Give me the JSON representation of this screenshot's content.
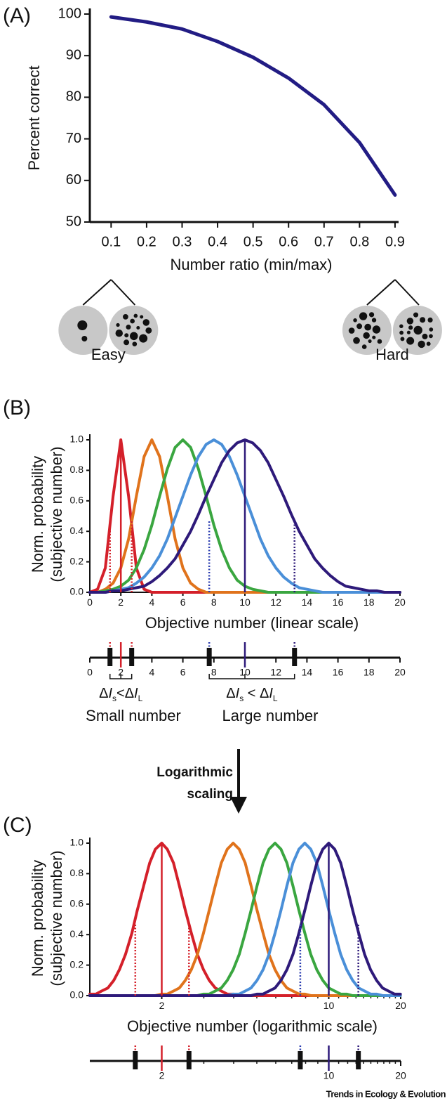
{
  "chart_data": [
    {
      "type": "line",
      "panel": "(A)",
      "ylabel": "Percent correct",
      "xlabel": "Number ratio (min/max)",
      "x": [
        0.1,
        0.2,
        0.3,
        0.4,
        0.5,
        0.6,
        0.7,
        0.8,
        0.9
      ],
      "values": [
        99.3,
        98.1,
        96.4,
        93.4,
        89.6,
        84.6,
        78.2,
        69.1,
        56.5
      ],
      "color": "#221c84",
      "xlim": [
        0.04,
        0.91
      ],
      "ylim": [
        50,
        100
      ],
      "xticks": [
        0.1,
        0.2,
        0.3,
        0.4,
        0.5,
        0.6,
        0.7,
        0.8,
        0.9
      ],
      "yticks": [
        50,
        60,
        70,
        80,
        90,
        100
      ],
      "annotations": [
        {
          "text": "Easy",
          "x": 0.1
        },
        {
          "text": "Hard",
          "x": 0.9
        }
      ]
    },
    {
      "type": "line",
      "panel": "(B)",
      "ylabel": [
        "Norm. probability",
        "(subjective number)"
      ],
      "xlabel": "Objective number (linear scale)",
      "x": [
        0,
        0.5,
        1,
        1.5,
        2,
        2.5,
        3,
        3.5,
        4,
        4.5,
        5,
        5.5,
        6,
        6.5,
        7,
        7.5,
        8,
        8.5,
        9,
        9.5,
        10,
        10.5,
        11,
        11.5,
        12,
        12.5,
        13,
        13.5,
        14,
        14.5,
        15,
        15.5,
        16,
        16.5,
        17,
        17.5,
        18,
        18.5,
        19,
        19.5,
        20
      ],
      "series": [
        {
          "color": "#d4202a",
          "values": [
            0,
            0.02,
            0.16,
            0.63,
            1,
            0.63,
            0.16,
            0.02,
            0,
            0,
            0,
            0,
            0,
            0,
            0,
            0,
            0,
            0,
            0,
            0,
            0,
            0,
            0,
            0,
            0,
            0,
            0,
            0,
            0,
            0,
            0,
            0,
            0,
            0,
            0,
            0,
            0,
            0,
            0,
            0,
            0
          ]
        },
        {
          "color": "#e0731c",
          "values": [
            0,
            0,
            0.02,
            0.06,
            0.16,
            0.35,
            0.63,
            0.89,
            1,
            0.89,
            0.63,
            0.35,
            0.16,
            0.06,
            0.02,
            0,
            0,
            0,
            0,
            0,
            0,
            0,
            0,
            0,
            0,
            0,
            0,
            0,
            0,
            0,
            0,
            0,
            0,
            0,
            0,
            0,
            0,
            0,
            0,
            0,
            0
          ]
        },
        {
          "color": "#3aa640",
          "values": [
            0,
            0,
            0.01,
            0.02,
            0.04,
            0.08,
            0.16,
            0.28,
            0.44,
            0.63,
            0.81,
            0.95,
            1,
            0.95,
            0.81,
            0.63,
            0.44,
            0.28,
            0.16,
            0.08,
            0.04,
            0.02,
            0.01,
            0,
            0,
            0,
            0,
            0,
            0,
            0,
            0,
            0,
            0,
            0,
            0,
            0,
            0,
            0,
            0,
            0,
            0
          ]
        },
        {
          "color": "#4a8fd8",
          "values": [
            0,
            0,
            0,
            0.01,
            0.02,
            0.03,
            0.06,
            0.1,
            0.16,
            0.24,
            0.35,
            0.49,
            0.63,
            0.77,
            0.89,
            0.97,
            1,
            0.97,
            0.89,
            0.77,
            0.63,
            0.49,
            0.35,
            0.24,
            0.16,
            0.1,
            0.06,
            0.03,
            0.02,
            0.01,
            0,
            0,
            0,
            0,
            0,
            0,
            0,
            0,
            0,
            0,
            0
          ]
        },
        {
          "color": "#2e1a7a",
          "values": [
            0,
            0,
            0,
            0.01,
            0.01,
            0.02,
            0.03,
            0.04,
            0.07,
            0.11,
            0.16,
            0.22,
            0.31,
            0.4,
            0.51,
            0.63,
            0.74,
            0.85,
            0.93,
            0.98,
            1,
            0.98,
            0.93,
            0.85,
            0.74,
            0.63,
            0.51,
            0.4,
            0.31,
            0.22,
            0.16,
            0.11,
            0.07,
            0.04,
            0.03,
            0.02,
            0.01,
            0.01,
            0,
            0,
            0
          ]
        }
      ],
      "xlim": [
        0,
        20
      ],
      "ylim": [
        0,
        1
      ],
      "xticks": [
        0,
        2,
        4,
        6,
        8,
        10,
        12,
        14,
        16,
        18,
        20
      ],
      "yticks": [
        {
          "value": 0,
          "label": "0.0"
        },
        0.2,
        0.4,
        0.6,
        0.8,
        {
          "value": 1,
          "label": "1.0"
        }
      ],
      "ref_lines": [
        {
          "x": 2,
          "y": 1,
          "color": "#d4202a",
          "dashed": false
        },
        {
          "x": 10,
          "y": 1,
          "color": "#2e1a7a",
          "dashed": false
        },
        {
          "x": 1.3,
          "y": 0.47,
          "color": "#d4202a",
          "dashed": true
        },
        {
          "x": 2.7,
          "y": 0.47,
          "color": "#d4202a",
          "dashed": true
        },
        {
          "x": 7.7,
          "y": 0.47,
          "color": "#2a3cb0",
          "dashed": true
        },
        {
          "x": 13.2,
          "y": 0.47,
          "color": "#2e1a7a",
          "dashed": true
        }
      ],
      "number_line": {
        "ticks": [
          0,
          2,
          4,
          6,
          8,
          10,
          12,
          14,
          16,
          18,
          20
        ],
        "delta_labels": [
          [
            "Δ",
            "I",
            "s",
            "<",
            "Δ",
            "I",
            "L"
          ],
          [
            "Δ",
            "I",
            "s",
            " < ",
            "Δ",
            "I",
            "L"
          ]
        ],
        "names": [
          "Small number",
          "Large number"
        ]
      }
    },
    {
      "type": "line",
      "panel": "(C)",
      "ylabel": [
        "Norm. probability",
        "(subjective number)"
      ],
      "xlabel": "Objective number (logarithmic scale)",
      "xscale": "log",
      "x": [
        1,
        1.06,
        1.12,
        1.19,
        1.26,
        1.33,
        1.41,
        1.5,
        1.58,
        1.68,
        1.78,
        1.88,
        2,
        2.11,
        2.24,
        2.37,
        2.51,
        2.66,
        2.82,
        2.99,
        3.16,
        3.35,
        3.55,
        3.76,
        3.98,
        4.22,
        4.47,
        4.73,
        5.01,
        5.31,
        5.62,
        5.96,
        6.31,
        6.68,
        7.08,
        7.5,
        7.94,
        8.41,
        8.91,
        9.44,
        10,
        10.59,
        11.22,
        11.89,
        12.59,
        13.34,
        14.13,
        14.96,
        15.85,
        16.79,
        17.78,
        18.84,
        19.95
      ],
      "series": [
        {
          "color": "#d4202a",
          "values": [
            0.01,
            0.01,
            0.03,
            0.05,
            0.1,
            0.17,
            0.27,
            0.41,
            0.56,
            0.72,
            0.87,
            0.96,
            1,
            0.96,
            0.87,
            0.72,
            0.56,
            0.41,
            0.27,
            0.17,
            0.1,
            0.05,
            0.03,
            0.01,
            0.01,
            0,
            0,
            0,
            0,
            0,
            0,
            0,
            0,
            0,
            0,
            0,
            0,
            0,
            0,
            0,
            0,
            0,
            0,
            0,
            0,
            0,
            0,
            0,
            0,
            0,
            0,
            0,
            0
          ]
        },
        {
          "color": "#e0731c",
          "values": [
            0,
            0,
            0,
            0,
            0,
            0,
            0,
            0,
            0,
            0,
            0,
            0,
            0.01,
            0.01,
            0.03,
            0.05,
            0.1,
            0.17,
            0.27,
            0.41,
            0.56,
            0.72,
            0.87,
            0.96,
            1,
            0.96,
            0.87,
            0.72,
            0.56,
            0.41,
            0.27,
            0.17,
            0.1,
            0.05,
            0.03,
            0.01,
            0.01,
            0,
            0,
            0,
            0,
            0,
            0,
            0,
            0,
            0,
            0,
            0,
            0,
            0,
            0,
            0,
            0
          ]
        },
        {
          "color": "#3aa640",
          "values": [
            0,
            0,
            0,
            0,
            0,
            0,
            0,
            0,
            0,
            0,
            0,
            0,
            0,
            0,
            0,
            0,
            0,
            0,
            0,
            0.01,
            0.01,
            0.03,
            0.05,
            0.1,
            0.17,
            0.27,
            0.41,
            0.56,
            0.72,
            0.87,
            0.96,
            1,
            0.96,
            0.87,
            0.72,
            0.56,
            0.41,
            0.27,
            0.17,
            0.1,
            0.05,
            0.03,
            0.01,
            0.01,
            0,
            0,
            0,
            0,
            0,
            0,
            0,
            0,
            0
          ]
        },
        {
          "color": "#4a8fd8",
          "values": [
            0,
            0,
            0,
            0,
            0,
            0,
            0,
            0,
            0,
            0,
            0,
            0,
            0,
            0,
            0,
            0,
            0,
            0,
            0,
            0,
            0,
            0,
            0,
            0,
            0.01,
            0.01,
            0.03,
            0.05,
            0.1,
            0.17,
            0.27,
            0.41,
            0.56,
            0.72,
            0.87,
            0.96,
            1,
            0.96,
            0.87,
            0.72,
            0.56,
            0.41,
            0.27,
            0.17,
            0.1,
            0.05,
            0.03,
            0.01,
            0.01,
            0,
            0,
            0,
            0
          ]
        },
        {
          "color": "#2e1a7a",
          "values": [
            0,
            0,
            0,
            0,
            0,
            0,
            0,
            0,
            0,
            0,
            0,
            0,
            0,
            0,
            0,
            0,
            0,
            0,
            0,
            0,
            0,
            0,
            0,
            0,
            0,
            0,
            0,
            0,
            0.01,
            0.01,
            0.03,
            0.05,
            0.1,
            0.17,
            0.27,
            0.41,
            0.56,
            0.72,
            0.87,
            0.96,
            1,
            0.96,
            0.87,
            0.72,
            0.56,
            0.41,
            0.27,
            0.17,
            0.1,
            0.05,
            0.03,
            0.01,
            0.01
          ]
        }
      ],
      "xlim": [
        1,
        20
      ],
      "ylim": [
        0,
        1
      ],
      "xticks": [
        2,
        10,
        20
      ],
      "minor_xticks": [
        3,
        4,
        5,
        6,
        7,
        8,
        9,
        11,
        12,
        13,
        14,
        15,
        16,
        17,
        18,
        19
      ],
      "yticks": [
        {
          "value": 0,
          "label": "0.0"
        },
        0.2,
        0.4,
        0.6,
        0.8,
        {
          "value": 1,
          "label": "1.0"
        }
      ],
      "ref_lines": [
        {
          "x": 2,
          "y": 1,
          "color": "#d4202a",
          "dashed": false
        },
        {
          "x": 10,
          "y": 1,
          "color": "#2e1a7a",
          "dashed": false
        },
        {
          "x": 1.55,
          "y": 0.47,
          "color": "#d4202a",
          "dashed": true
        },
        {
          "x": 2.6,
          "y": 0.47,
          "color": "#d4202a",
          "dashed": true
        },
        {
          "x": 7.6,
          "y": 0.47,
          "color": "#2a3cb0",
          "dashed": true
        },
        {
          "x": 13.3,
          "y": 0.47,
          "color": "#2e1a7a",
          "dashed": true
        }
      ],
      "number_line": {
        "ticks": [
          2,
          10,
          20
        ]
      }
    }
  ],
  "transition": [
    "Logarithmic",
    "scaling"
  ],
  "footer": "Trends in Ecology & Evolution"
}
